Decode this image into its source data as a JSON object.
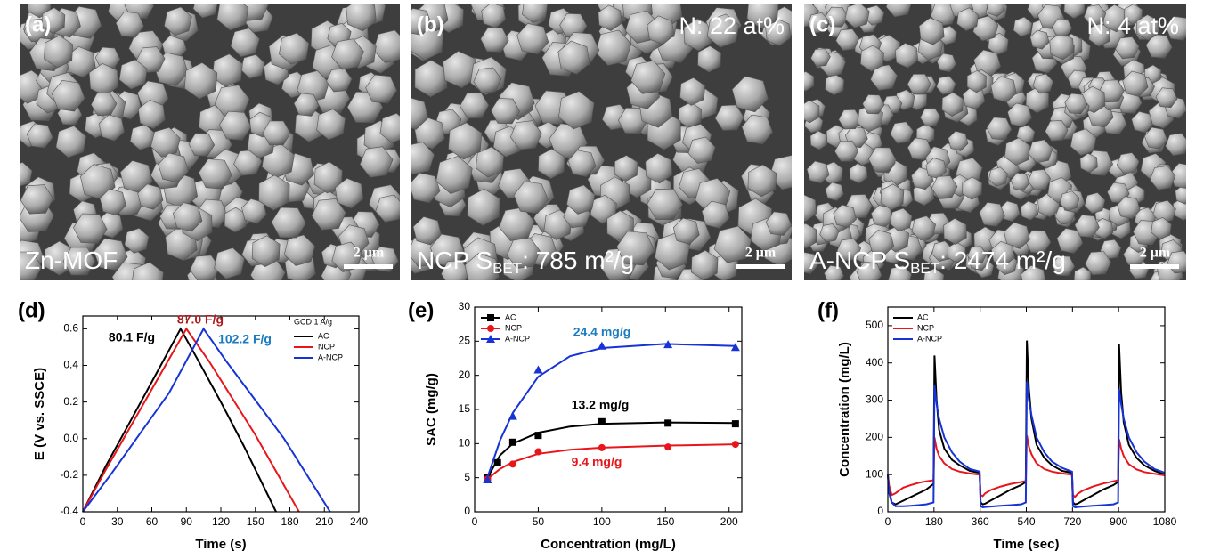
{
  "images": [
    {
      "panel": "(a)",
      "label_parts": [
        "Zn-MOF"
      ],
      "scale_bar": "2 μm"
    },
    {
      "panel": "(b)",
      "note": "N: 22 at%",
      "label_parts": [
        "NCP  S",
        "BET",
        ": 785 m²/g"
      ],
      "scale_bar": "2 μm"
    },
    {
      "panel": "(c)",
      "note": "N: 4 at%",
      "label_parts": [
        "A-NCP S",
        "BET",
        ": 2474 m²/g"
      ],
      "scale_bar": "2 μm"
    }
  ],
  "chart_data": [
    {
      "type": "line",
      "panel_label": "(d)",
      "x_label": "Time (s)",
      "y_label": "E (V vs. SSCE)",
      "xlim": [
        0,
        240
      ],
      "xticks": [
        0,
        30,
        60,
        90,
        120,
        150,
        180,
        210,
        240
      ],
      "ylim": [
        -0.4,
        0.67
      ],
      "yticks": [
        -0.4,
        -0.2,
        {
          "value": 0,
          "label": "0.0"
        },
        0.2,
        0.4,
        0.6
      ],
      "legend_title": "GCD 1 A/g",
      "legend": "upper right",
      "series": [
        {
          "name": "AC",
          "color": "#000000",
          "x": [
            0,
            20,
            40,
            60,
            85,
            100,
            120,
            140,
            168
          ],
          "values": [
            -0.4,
            -0.15,
            0.08,
            0.31,
            0.6,
            0.43,
            0.2,
            -0.04,
            -0.4
          ]
        },
        {
          "name": "NCP",
          "color": "#e8161b",
          "x": [
            0,
            20,
            40,
            60,
            90,
            110,
            130,
            150,
            188
          ],
          "values": [
            -0.4,
            -0.17,
            0.05,
            0.27,
            0.6,
            0.42,
            0.22,
            0.02,
            -0.4
          ]
        },
        {
          "name": "A-NCP",
          "color": "#1733d6",
          "x": [
            0,
            25,
            50,
            75,
            105,
            125,
            150,
            175,
            215
          ],
          "values": [
            -0.4,
            -0.19,
            0.03,
            0.25,
            0.6,
            0.42,
            0.21,
            0.0,
            -0.4
          ]
        }
      ],
      "annotations": [
        {
          "text": "80.1 F/g",
          "color": "#000000"
        },
        {
          "text": "87.0 F/g",
          "color": "#b0191e"
        },
        {
          "text": "102.2 F/g",
          "color": "#1a7bc0"
        }
      ]
    },
    {
      "type": "scatter",
      "panel_label": "(e)",
      "x_label": "Concentration (mg/L)",
      "y_label": "SAC (mg/g)",
      "xlim": [
        0,
        210
      ],
      "xticks": [
        0,
        50,
        100,
        150,
        200
      ],
      "ylim": [
        0,
        30
      ],
      "yticks": [
        0,
        5,
        10,
        15,
        20,
        25,
        30
      ],
      "legend": "upper left",
      "series": [
        {
          "name": "AC",
          "color": "#000000",
          "marker": "square",
          "x": [
            10,
            18,
            30,
            50,
            100,
            152,
            205
          ],
          "values": [
            5,
            7.2,
            10.2,
            11.2,
            13.2,
            13,
            12.9
          ],
          "fit_x": [
            10,
            20,
            30,
            50,
            75,
            100,
            150,
            205
          ],
          "fit_values": [
            5,
            8.3,
            10,
            11.6,
            12.5,
            12.9,
            13.1,
            13
          ]
        },
        {
          "name": "NCP",
          "color": "#e8161b",
          "marker": "circle",
          "x": [
            10,
            30,
            50,
            100,
            152,
            205
          ],
          "values": [
            4.8,
            7,
            8.8,
            9.4,
            9.5,
            9.9
          ],
          "fit_x": [
            10,
            20,
            30,
            50,
            75,
            100,
            150,
            205
          ],
          "fit_values": [
            4.8,
            6.3,
            7.3,
            8.5,
            9.1,
            9.4,
            9.7,
            9.9
          ]
        },
        {
          "name": "A-NCP",
          "color": "#1733d6",
          "marker": "triangle",
          "x": [
            10,
            30,
            50,
            100,
            152,
            205
          ],
          "values": [
            4.7,
            14,
            20.8,
            24.3,
            24.5,
            24.1
          ],
          "fit_x": [
            10,
            20,
            30,
            50,
            75,
            100,
            150,
            205
          ],
          "fit_values": [
            5,
            10.5,
            14.5,
            19.8,
            22.8,
            24,
            24.6,
            24.3
          ]
        }
      ],
      "annotations": [
        {
          "text": "24.4 mg/g",
          "color": "#1a7bc0"
        },
        {
          "text": "13.2 mg/g",
          "color": "#000000"
        },
        {
          "text": "9.4 mg/g",
          "color": "#e8161b"
        }
      ]
    },
    {
      "type": "line",
      "panel_label": "(f)",
      "x_label": "Time (sec)",
      "y_label": "Concentration (mg/L)",
      "xlim": [
        0,
        1080
      ],
      "xticks": [
        0,
        180,
        360,
        540,
        720,
        900,
        1080
      ],
      "ylim": [
        0,
        550
      ],
      "yticks": [
        0,
        100,
        200,
        300,
        400,
        500
      ],
      "legend": "upper left",
      "x": [
        0,
        5,
        15,
        30,
        60,
        90,
        120,
        150,
        178,
        182,
        190,
        200,
        220,
        250,
        280,
        320,
        358,
        362,
        370,
        380,
        400,
        440,
        480,
        520,
        538,
        542,
        550,
        560,
        580,
        610,
        640,
        680,
        718,
        722,
        730,
        740,
        760,
        800,
        840,
        880,
        898,
        902,
        910,
        920,
        940,
        970,
        1000,
        1040,
        1080
      ],
      "series": [
        {
          "name": "AC",
          "color": "#000000",
          "values": [
            100,
            60,
            25,
            20,
            30,
            40,
            50,
            60,
            75,
            420,
            300,
            220,
            170,
            140,
            125,
            110,
            105,
            25,
            20,
            22,
            30,
            45,
            60,
            72,
            80,
            460,
            330,
            250,
            180,
            145,
            125,
            110,
            105,
            25,
            20,
            22,
            30,
            45,
            60,
            72,
            80,
            450,
            320,
            240,
            180,
            145,
            125,
            110,
            100
          ]
        },
        {
          "name": "NCP",
          "color": "#e8161b",
          "values": [
            100,
            70,
            45,
            50,
            65,
            72,
            78,
            82,
            85,
            200,
            170,
            150,
            130,
            115,
            108,
            103,
            100,
            45,
            42,
            50,
            58,
            68,
            75,
            80,
            83,
            205,
            175,
            155,
            130,
            115,
            108,
            103,
            100,
            45,
            40,
            48,
            57,
            68,
            76,
            82,
            85,
            195,
            170,
            150,
            128,
            114,
            107,
            102,
            98
          ]
        },
        {
          "name": "A-NCP",
          "color": "#1733d6",
          "values": [
            100,
            50,
            25,
            15,
            15,
            16,
            18,
            20,
            25,
            340,
            290,
            250,
            200,
            160,
            135,
            115,
            108,
            15,
            12,
            13,
            14,
            16,
            18,
            20,
            25,
            350,
            300,
            260,
            200,
            160,
            135,
            118,
            108,
            15,
            12,
            13,
            14,
            16,
            18,
            20,
            25,
            330,
            290,
            250,
            200,
            160,
            135,
            115,
            105
          ]
        }
      ]
    }
  ]
}
